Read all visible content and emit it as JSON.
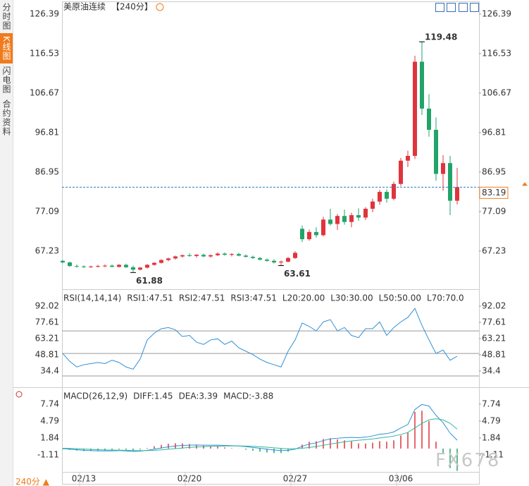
{
  "sidebar": [
    "分时图",
    "K线图",
    "闪电图",
    "合约资料"
  ],
  "period_button": "240分 ▲",
  "watermark": "FX678",
  "chart_data": [
    {
      "type": "candlestick",
      "title": "美原油连续",
      "subtitle": "【240分】",
      "categories": [
        null,
        null,
        null,
        "02/13",
        null,
        null,
        null,
        null,
        null,
        null,
        null,
        null,
        null,
        null,
        null,
        null,
        null,
        null,
        "02/20",
        null,
        null,
        null,
        null,
        null,
        null,
        null,
        null,
        null,
        null,
        null,
        null,
        null,
        null,
        "02/27",
        null,
        null,
        null,
        null,
        null,
        null,
        null,
        null,
        null,
        null,
        null,
        null,
        null,
        null,
        "03/06",
        null,
        null,
        null,
        null,
        null,
        null,
        null,
        null
      ],
      "open": [
        64.8,
        64.4,
        63.5,
        63.4,
        63.3,
        63.4,
        63.5,
        63.6,
        63.3,
        63.8,
        63.2,
        62.6,
        63.1,
        63.8,
        64.3,
        65.0,
        65.4,
        65.9,
        66.2,
        66.0,
        66.3,
        65.9,
        66.2,
        66.6,
        66.3,
        66.5,
        66.1,
        65.8,
        65.5,
        65.1,
        64.8,
        64.4,
        64.6,
        65.5,
        72.8,
        70.2,
        72.0,
        71.2,
        75.1,
        74.0,
        76.0,
        74.5,
        76.2,
        75.6,
        77.8,
        79.6,
        82.0,
        80.3,
        84.0,
        89.8,
        91.0,
        114.5,
        102.8,
        97.5,
        86.5,
        89.2,
        79.8
      ],
      "high": [
        65.0,
        64.6,
        63.9,
        63.7,
        63.6,
        63.8,
        63.9,
        63.9,
        64.0,
        64.1,
        63.6,
        63.3,
        64.0,
        64.5,
        65.2,
        65.6,
        66.1,
        66.4,
        66.7,
        66.5,
        66.6,
        66.4,
        66.9,
        66.9,
        66.7,
        66.8,
        66.4,
        66.1,
        65.8,
        65.4,
        65.2,
        64.9,
        65.8,
        67.2,
        73.6,
        72.6,
        73.2,
        75.8,
        77.8,
        76.5,
        77.6,
        76.8,
        77.9,
        78.2,
        80.3,
        82.5,
        82.6,
        84.6,
        90.5,
        92.3,
        116.0,
        119.48,
        106.4,
        100.6,
        91.2,
        91.0,
        88.0
      ],
      "low": [
        64.2,
        63.3,
        63.1,
        63.0,
        63.0,
        63.1,
        63.2,
        63.2,
        63.1,
        63.0,
        61.88,
        62.4,
        62.9,
        63.6,
        64.1,
        64.7,
        65.1,
        65.6,
        65.8,
        65.6,
        65.7,
        65.6,
        66.0,
        66.1,
        65.9,
        65.9,
        65.6,
        65.3,
        64.9,
        64.6,
        64.1,
        63.61,
        64.4,
        65.3,
        69.5,
        69.8,
        70.6,
        70.9,
        73.6,
        72.5,
        73.8,
        73.2,
        74.8,
        75.0,
        76.9,
        78.8,
        79.3,
        79.9,
        83.5,
        88.2,
        90.2,
        101.2,
        95.8,
        84.8,
        82.3,
        76.2,
        78.9
      ],
      "close": [
        64.4,
        63.5,
        63.4,
        63.3,
        63.4,
        63.5,
        63.6,
        63.3,
        63.8,
        63.2,
        62.6,
        63.1,
        63.8,
        64.3,
        65.0,
        65.4,
        65.9,
        66.2,
        66.0,
        66.3,
        65.9,
        66.2,
        66.6,
        66.3,
        66.5,
        66.1,
        65.8,
        65.5,
        65.1,
        64.8,
        64.4,
        64.6,
        65.5,
        66.8,
        70.2,
        72.0,
        71.2,
        75.1,
        74.0,
        76.0,
        74.5,
        76.2,
        75.6,
        77.8,
        79.6,
        82.0,
        80.3,
        84.0,
        89.8,
        91.0,
        114.5,
        102.8,
        97.5,
        86.5,
        89.2,
        79.8,
        83.19
      ],
      "up_color": "#e0343c",
      "down_color": "#22a36a",
      "last_color": "#f07b1d",
      "ylim": [
        58.07,
        128.5
      ],
      "yticks": [
        126.39,
        116.53,
        106.67,
        96.81,
        86.95,
        77.09,
        67.23
      ]
    },
    {
      "type": "rsi",
      "title": "RSI(14,14,14)",
      "legend": [
        {
          "label": "RSI1:47.51",
          "color": "#2f8fd8"
        },
        {
          "label": "RSI2:47.51",
          "color": "#2fb89a"
        },
        {
          "label": "RSI3:47.51",
          "color": "#4f7fd0"
        }
      ],
      "levels": [
        {
          "label": "L20:20.00",
          "value": 20
        },
        {
          "label": "L30:30.00",
          "value": 30
        },
        {
          "label": "L50:50.00",
          "value": 50
        },
        {
          "label": "L70:70.0",
          "value": 70
        }
      ],
      "values": [
        50,
        43,
        38,
        40,
        41,
        42,
        41,
        44,
        42,
        38,
        36,
        45,
        62,
        68,
        72,
        73,
        71,
        65,
        66,
        60,
        58,
        62,
        63,
        58,
        61,
        55,
        52,
        49,
        45,
        42,
        40,
        38,
        52,
        62,
        77,
        74,
        70,
        78,
        80,
        70,
        73,
        66,
        64,
        72,
        72,
        78,
        66,
        73,
        78,
        82,
        90,
        75,
        62,
        50,
        53,
        44,
        47.51
      ],
      "color": "#2f8fd8",
      "ylim": [
        22.5,
        103.9
      ],
      "yticks": [
        92.02,
        77.61,
        63.21,
        48.81,
        34.4
      ]
    },
    {
      "type": "macd",
      "title": "MACD(26,12,9)",
      "diff": {
        "label": "DIFF:1.45",
        "color": "#2f8fd8",
        "values": [
          0.0,
          -0.1,
          -0.2,
          -0.3,
          -0.35,
          -0.4,
          -0.4,
          -0.4,
          -0.35,
          -0.4,
          -0.5,
          -0.45,
          -0.3,
          -0.1,
          0.1,
          0.3,
          0.45,
          0.55,
          0.6,
          0.62,
          0.6,
          0.6,
          0.6,
          0.55,
          0.5,
          0.45,
          0.35,
          0.2,
          0.05,
          -0.1,
          -0.25,
          -0.35,
          -0.3,
          -0.1,
          0.4,
          0.8,
          1.0,
          1.4,
          1.7,
          1.8,
          1.9,
          1.95,
          1.9,
          2.0,
          2.2,
          2.5,
          2.6,
          2.9,
          3.6,
          4.2,
          6.8,
          7.7,
          7.4,
          5.8,
          4.5,
          2.7,
          1.45
        ]
      },
      "dea": {
        "label": "DEA:3.39",
        "color": "#2fb89a",
        "values": [
          0.05,
          0.02,
          -0.03,
          -0.08,
          -0.14,
          -0.19,
          -0.23,
          -0.26,
          -0.28,
          -0.3,
          -0.34,
          -0.36,
          -0.35,
          -0.3,
          -0.22,
          -0.12,
          -0.01,
          0.1,
          0.2,
          0.28,
          0.34,
          0.39,
          0.43,
          0.45,
          0.46,
          0.46,
          0.44,
          0.39,
          0.32,
          0.24,
          0.14,
          0.04,
          -0.03,
          -0.04,
          0.05,
          0.2,
          0.36,
          0.57,
          0.8,
          1.0,
          1.18,
          1.33,
          1.45,
          1.56,
          1.69,
          1.85,
          2.0,
          2.18,
          2.46,
          2.81,
          3.6,
          4.4,
          5.0,
          5.2,
          5.0,
          4.4,
          3.39
        ]
      },
      "hist": {
        "label": "MACD:-3.88",
        "up_color": "#e0343c",
        "down_color": "#22a36a",
        "values": [
          -0.1,
          -0.24,
          -0.34,
          -0.44,
          -0.42,
          -0.42,
          -0.34,
          -0.28,
          -0.14,
          -0.2,
          -0.32,
          -0.18,
          0.1,
          0.4,
          0.64,
          0.84,
          0.92,
          0.9,
          0.8,
          0.68,
          0.52,
          0.42,
          0.34,
          0.2,
          0.08,
          -0.02,
          -0.18,
          -0.38,
          -0.54,
          -0.68,
          -0.78,
          -0.78,
          -0.54,
          -0.12,
          0.7,
          1.2,
          1.28,
          1.66,
          1.8,
          1.6,
          1.44,
          1.24,
          0.9,
          0.88,
          1.02,
          1.3,
          1.2,
          1.44,
          2.28,
          2.78,
          6.4,
          6.6,
          4.8,
          1.2,
          -1.0,
          -3.4,
          -3.88
        ]
      },
      "ylim": [
        -4.43,
        9.95
      ],
      "yticks": [
        7.74,
        4.79,
        1.84,
        -1.11
      ]
    }
  ]
}
